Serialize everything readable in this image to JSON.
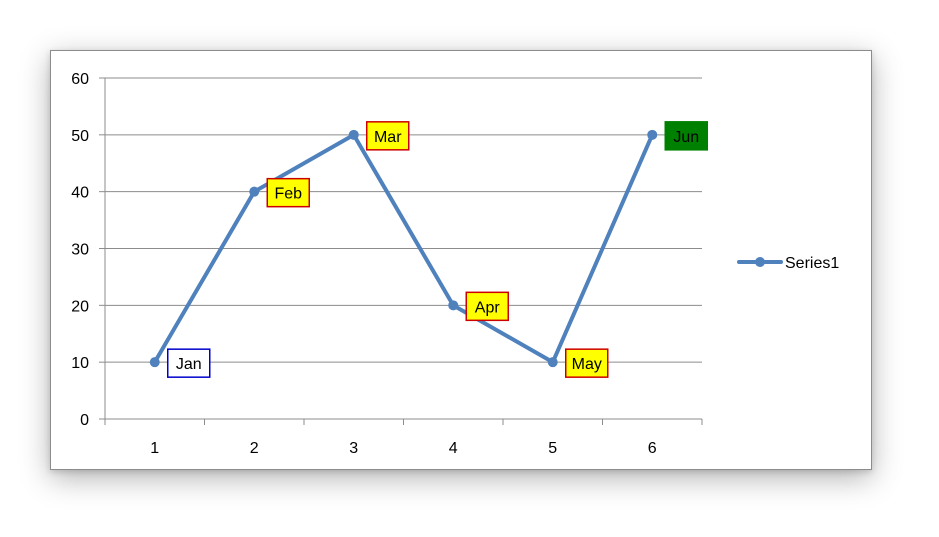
{
  "chart_data": {
    "type": "line",
    "title": "",
    "xlabel": "",
    "ylabel": "",
    "x": [
      1,
      2,
      3,
      4,
      5,
      6
    ],
    "xlim": [
      0.5,
      6.5
    ],
    "ylim": [
      0,
      60
    ],
    "y_ticks": [
      0,
      10,
      20,
      30,
      40,
      50,
      60
    ],
    "grid": "horizontal",
    "series": [
      {
        "name": "Series1",
        "values": [
          10,
          40,
          50,
          20,
          10,
          50
        ],
        "color": "#4f81bd"
      }
    ],
    "data_labels": [
      {
        "text": "Jan",
        "fill": "#ffffff",
        "border": "#0000cc",
        "color": "#000000"
      },
      {
        "text": "Feb",
        "fill": "#ffff00",
        "border": "#cc0000",
        "color": "#000000"
      },
      {
        "text": "Mar",
        "fill": "#ffff00",
        "border": "#cc0000",
        "color": "#000000"
      },
      {
        "text": "Apr",
        "fill": "#ffff00",
        "border": "#cc0000",
        "color": "#000000"
      },
      {
        "text": "May",
        "fill": "#ffff00",
        "border": "#cc0000",
        "color": "#000000"
      },
      {
        "text": "Jun",
        "fill": "#008000",
        "border": "#008000",
        "color": "#000000"
      }
    ],
    "legend": {
      "position": "right",
      "entries": [
        "Series1"
      ]
    }
  }
}
